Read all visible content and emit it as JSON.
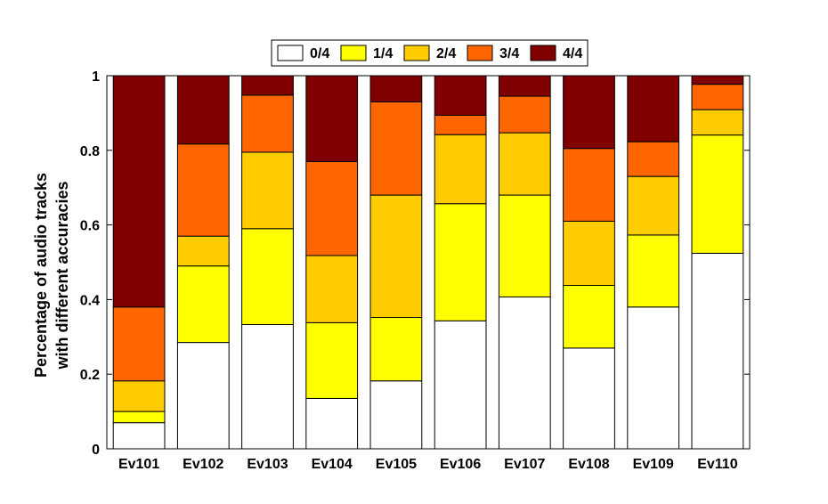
{
  "chart_data": {
    "type": "bar",
    "stacked": true,
    "title": "",
    "xlabel": "",
    "ylabel_lines": [
      "Percentage of audio tracks",
      "with different accuracies"
    ],
    "ylim": [
      0,
      1
    ],
    "yticks": [
      "0",
      "0.2",
      "0.4",
      "0.6",
      "0.8",
      "1"
    ],
    "yticks_values": [
      0,
      0.2,
      0.4,
      0.6,
      0.8,
      1
    ],
    "grid": false,
    "legend_position": "top-center",
    "categories": [
      "Ev101",
      "Ev102",
      "Ev103",
      "Ev104",
      "Ev105",
      "Ev106",
      "Ev107",
      "Ev108",
      "Ev109",
      "Ev110"
    ],
    "series": [
      {
        "name": "0/4",
        "color": "#ffffff",
        "values": [
          0.07,
          0.285,
          0.333,
          0.135,
          0.182,
          0.343,
          0.407,
          0.27,
          0.38,
          0.524
        ]
      },
      {
        "name": "1/4",
        "color": "#ffff00",
        "values": [
          0.03,
          0.205,
          0.257,
          0.203,
          0.17,
          0.314,
          0.273,
          0.168,
          0.193,
          0.317
        ]
      },
      {
        "name": "2/4",
        "color": "#ffcc00",
        "values": [
          0.082,
          0.08,
          0.205,
          0.18,
          0.328,
          0.185,
          0.167,
          0.172,
          0.157,
          0.068
        ]
      },
      {
        "name": "3/4",
        "color": "#ff6600",
        "values": [
          0.198,
          0.247,
          0.153,
          0.252,
          0.25,
          0.052,
          0.098,
          0.195,
          0.093,
          0.068
        ]
      },
      {
        "name": "4/4",
        "color": "#800000",
        "values": [
          0.62,
          0.183,
          0.052,
          0.23,
          0.07,
          0.106,
          0.055,
          0.195,
          0.177,
          0.023
        ]
      }
    ]
  }
}
